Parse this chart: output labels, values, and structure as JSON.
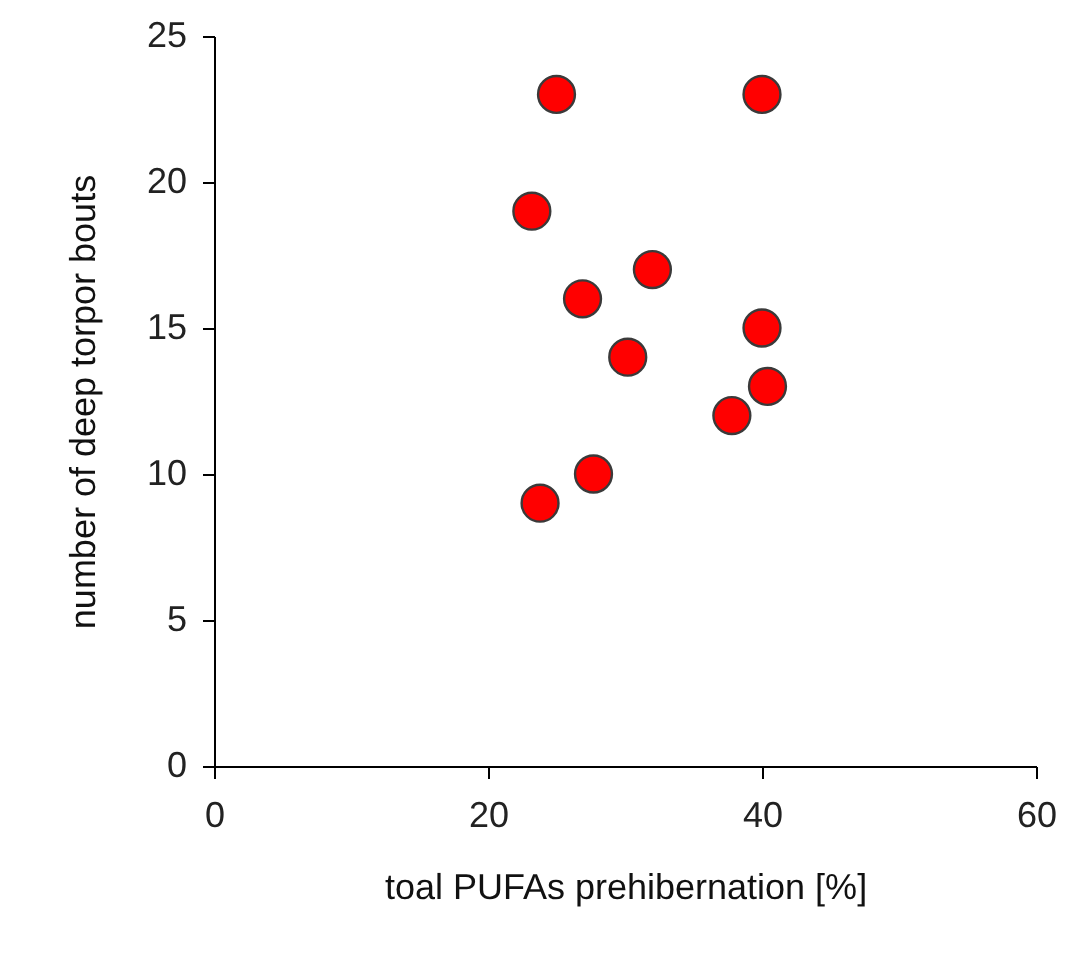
{
  "chart_data": {
    "type": "scatter",
    "xlabel": "toal PUFAs prehibernation  [%]",
    "ylabel": "number of deep torpor bouts",
    "xlim": [
      0,
      60
    ],
    "xticks": [
      0,
      20,
      40,
      60
    ],
    "ylim": [
      0,
      25
    ],
    "yticks": [
      0,
      5,
      10,
      15,
      20,
      25
    ],
    "marker": "circle",
    "series": [
      {
        "color": "#ff0000",
        "x": [
          25.0,
          40.0,
          23.2,
          32.0,
          26.9,
          40.0,
          30.2,
          40.4,
          37.8,
          27.7,
          23.8
        ],
        "values": [
          23,
          23,
          19,
          17,
          16,
          15,
          14,
          13,
          12,
          10,
          9
        ]
      }
    ]
  }
}
